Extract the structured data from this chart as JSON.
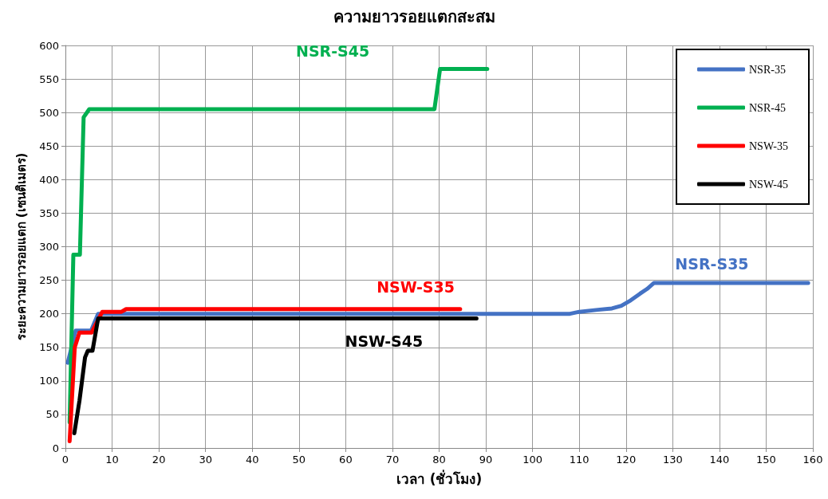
{
  "chart_data": {
    "type": "line",
    "title": "ความยาวรอยแตกสะสม",
    "xlabel": "เวลา (ชั่วโมง)",
    "ylabel": "ระยะความยาวรอยแตก (เซนติเมตร)",
    "xlim": [
      0,
      160
    ],
    "xticks": [
      0,
      10,
      20,
      30,
      40,
      50,
      60,
      70,
      80,
      90,
      100,
      110,
      120,
      130,
      140,
      150,
      160
    ],
    "ylim": [
      0,
      600
    ],
    "yticks": [
      0,
      50,
      100,
      150,
      200,
      250,
      300,
      350,
      400,
      450,
      500,
      550,
      600
    ],
    "grid": true,
    "legend": "top right",
    "marker": "none",
    "line_style": "solid",
    "series": [
      {
        "name": "NSR-35",
        "color": "#4472c4",
        "x": [
          0.5,
          2.2,
          5.5,
          7,
          20,
          60,
          108,
          110,
          114,
          117,
          119,
          121,
          123,
          124.5,
          126,
          159
        ],
        "values": [
          127,
          175,
          175,
          200,
          200,
          200,
          200,
          203,
          206,
          208,
          212,
          220,
          230,
          237,
          246,
          246
        ]
      },
      {
        "name": "NSR-45",
        "color": "#00b050",
        "x": [
          0.9,
          1.7,
          3.1,
          3.9,
          5.1,
          20,
          79,
          80.2,
          90.3
        ],
        "values": [
          38,
          288,
          288,
          493,
          505,
          505,
          505,
          565,
          565
        ]
      },
      {
        "name": "NSW-35",
        "color": "#ff0000",
        "x": [
          0.9,
          2,
          3,
          5.6,
          7.9,
          12,
          13,
          40,
          84.5
        ],
        "values": [
          10,
          150,
          172,
          172,
          203,
          203,
          207,
          207,
          207
        ]
      },
      {
        "name": "NSW-45",
        "color": "#000000",
        "x": [
          1.9,
          3,
          4.2,
          4.8,
          5.8,
          7,
          20,
          88
        ],
        "values": [
          22,
          70,
          135,
          145,
          145,
          193,
          193,
          193
        ]
      }
    ],
    "annotations": [
      "NSR-S35",
      "NSR-S45",
      "NSW-S35",
      "NSW-S45"
    ]
  }
}
